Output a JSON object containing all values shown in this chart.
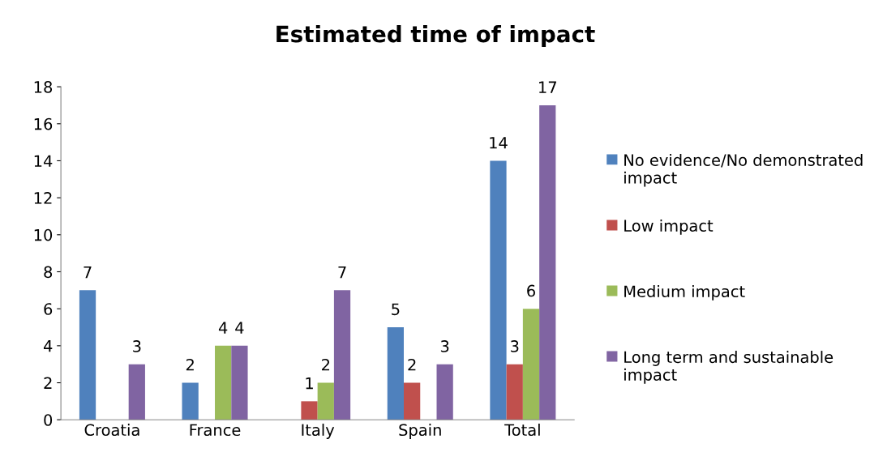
{
  "chart_data": {
    "type": "bar",
    "title": "Estimated time of impact",
    "categories": [
      "Croatia",
      "France",
      "Italy",
      "Spain",
      "Total"
    ],
    "series": [
      {
        "name": "No evidence/No demonstrated impact",
        "color": "#4f81bd",
        "values": [
          7,
          2,
          null,
          5,
          14
        ]
      },
      {
        "name": "Low impact",
        "color": "#c0504d",
        "values": [
          null,
          null,
          1,
          2,
          3
        ]
      },
      {
        "name": "Medium impact",
        "color": "#9bbb59",
        "values": [
          null,
          4,
          2,
          null,
          6
        ]
      },
      {
        "name": "Long term and sustainable impact",
        "color": "#8064a2",
        "values": [
          3,
          4,
          7,
          3,
          17
        ]
      }
    ],
    "ylim": [
      0,
      18
    ],
    "yticks": [
      0,
      2,
      4,
      6,
      8,
      10,
      12,
      14,
      16,
      18
    ],
    "grid": false,
    "legend": "right",
    "data_labels": true
  }
}
